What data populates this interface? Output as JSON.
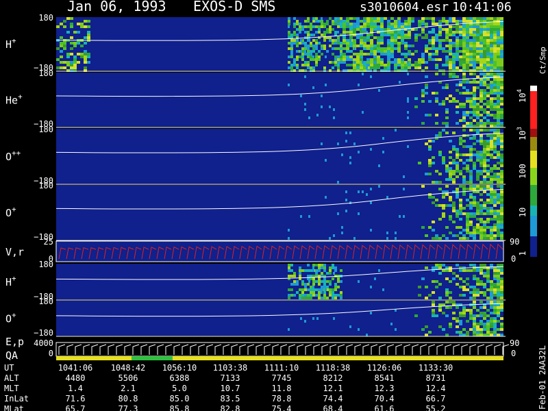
{
  "header": {
    "date": "Jan 06, 1993",
    "instrument": "EXOS-D SMS",
    "file": "s3010604.esr",
    "time": "10:41:06"
  },
  "panels": [
    {
      "label": "H",
      "sup": "+",
      "top": "180",
      "bottom": "−180"
    },
    {
      "label": "He",
      "sup": "+",
      "top": "180",
      "bottom": "−180"
    },
    {
      "label": "O",
      "sup": "++",
      "top": "180",
      "bottom": "−180"
    },
    {
      "label": "O",
      "sup": "+",
      "top": "180",
      "bottom": "−180"
    },
    {
      "label": "V,r",
      "top": "25",
      "bottom": "0",
      "right_top": "90",
      "right_bottom": "0"
    },
    {
      "label": "H",
      "sup": "+",
      "top": "180",
      "bottom": "−180"
    },
    {
      "label": "O",
      "sup": "+",
      "top": "180",
      "bottom": "−180"
    },
    {
      "label": "E,p",
      "label2": "QA",
      "top": "4000",
      "bottom": "0",
      "right_top": "90",
      "right_bottom": "0"
    }
  ],
  "colorbar": {
    "unit": "Ct/Smp",
    "ticks": [
      {
        "text": "10",
        "sup": "4"
      },
      {
        "text": "10",
        "sup": "3"
      },
      {
        "text": "100"
      },
      {
        "text": "10"
      },
      {
        "text": "1"
      }
    ]
  },
  "ephemeris": {
    "rows": [
      {
        "label": "UT",
        "values": [
          "1041:06",
          "1048:42",
          "1056:10",
          "1103:38",
          "1111:10",
          "1118:38",
          "1126:06",
          "1133:30"
        ]
      },
      {
        "label": "ALT",
        "values": [
          "4480",
          "5506",
          "6388",
          "7133",
          "7745",
          "8212",
          "8541",
          "8731"
        ]
      },
      {
        "label": "MLT",
        "values": [
          "1.4",
          "2.1",
          "5.0",
          "10.7",
          "11.8",
          "12.1",
          "12.3",
          "12.4"
        ]
      },
      {
        "label": "InLat",
        "values": [
          "71.6",
          "80.8",
          "85.0",
          "83.5",
          "78.8",
          "74.4",
          "70.4",
          "66.7"
        ]
      },
      {
        "label": "MLat",
        "values": [
          "65.7",
          "77.3",
          "85.8",
          "82.8",
          "75.4",
          "68.4",
          "61.6",
          "55.2"
        ]
      }
    ],
    "stamp": "Feb-01 2AA32L"
  }
}
